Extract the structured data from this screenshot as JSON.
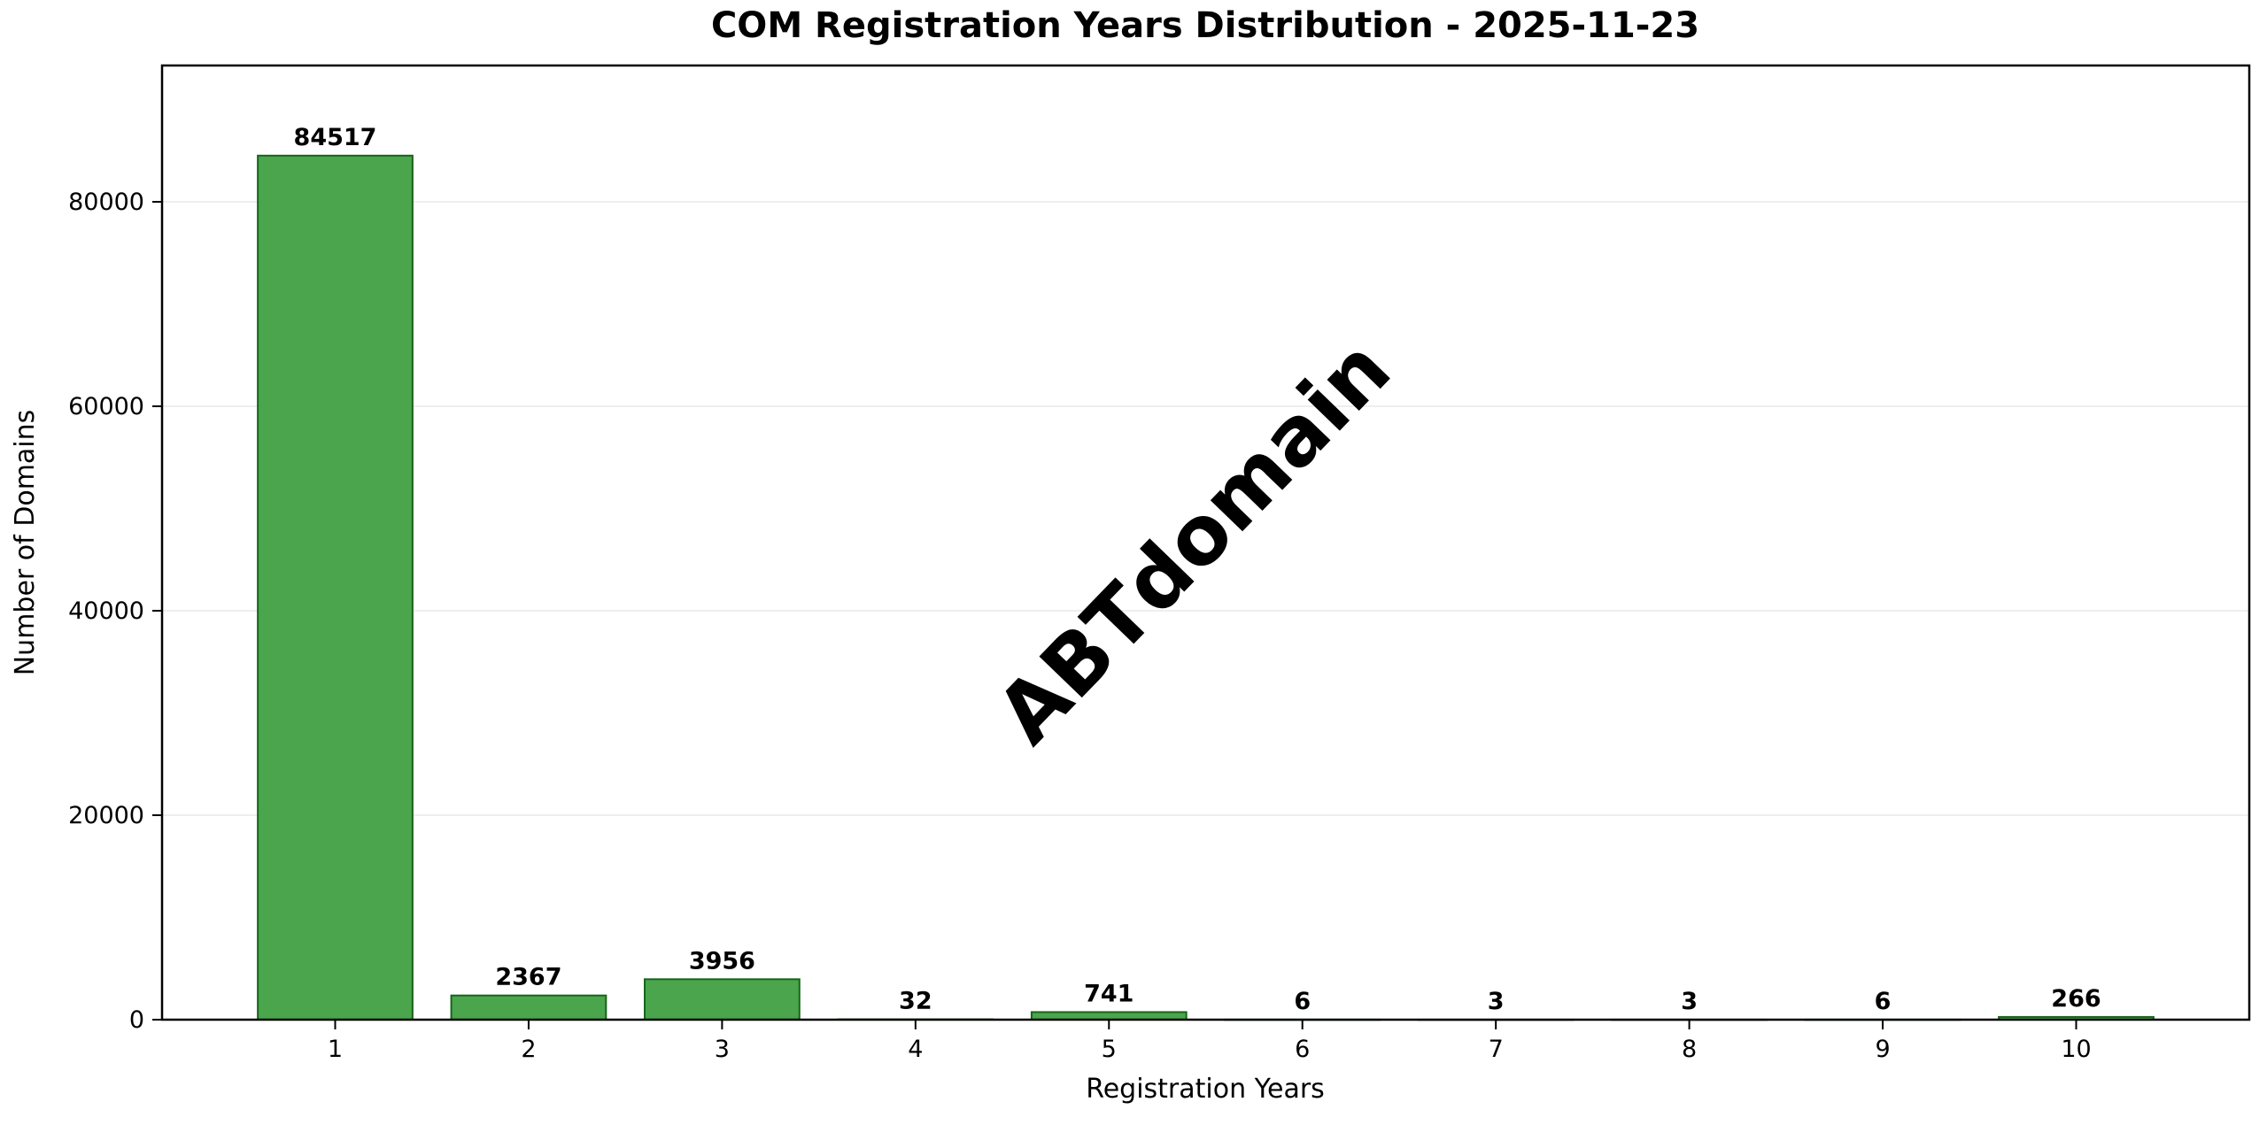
{
  "chart_data": {
    "type": "bar",
    "title": "COM Registration Years Distribution - 2025-11-23",
    "xlabel": "Registration Years",
    "ylabel": "Number of Domains",
    "categories": [
      "1",
      "2",
      "3",
      "4",
      "5",
      "6",
      "7",
      "8",
      "9",
      "10"
    ],
    "values": [
      84517,
      2367,
      3956,
      32,
      741,
      6,
      3,
      3,
      6,
      266
    ],
    "value_labels": [
      "84517",
      "2367",
      "3956",
      "32",
      "741",
      "6",
      "3",
      "3",
      "6",
      "266"
    ],
    "yticks": [
      0,
      20000,
      40000,
      60000,
      80000
    ],
    "ytick_labels": [
      "0",
      "20000",
      "40000",
      "60000",
      "80000"
    ],
    "ylim": [
      0,
      93333
    ],
    "xlim": [
      0.105,
      10.895
    ],
    "bar_width_units": 0.8,
    "grid": "horizontal",
    "legend": "none",
    "watermark": "ABTdomain",
    "colors": {
      "bar_fill": "#4aa54c",
      "bar_edge": "#17641a",
      "grid": "#e8e8e8",
      "axis": "#000000",
      "text": "#000000",
      "watermark": "#e0e0e0",
      "background": "#ffffff"
    }
  }
}
